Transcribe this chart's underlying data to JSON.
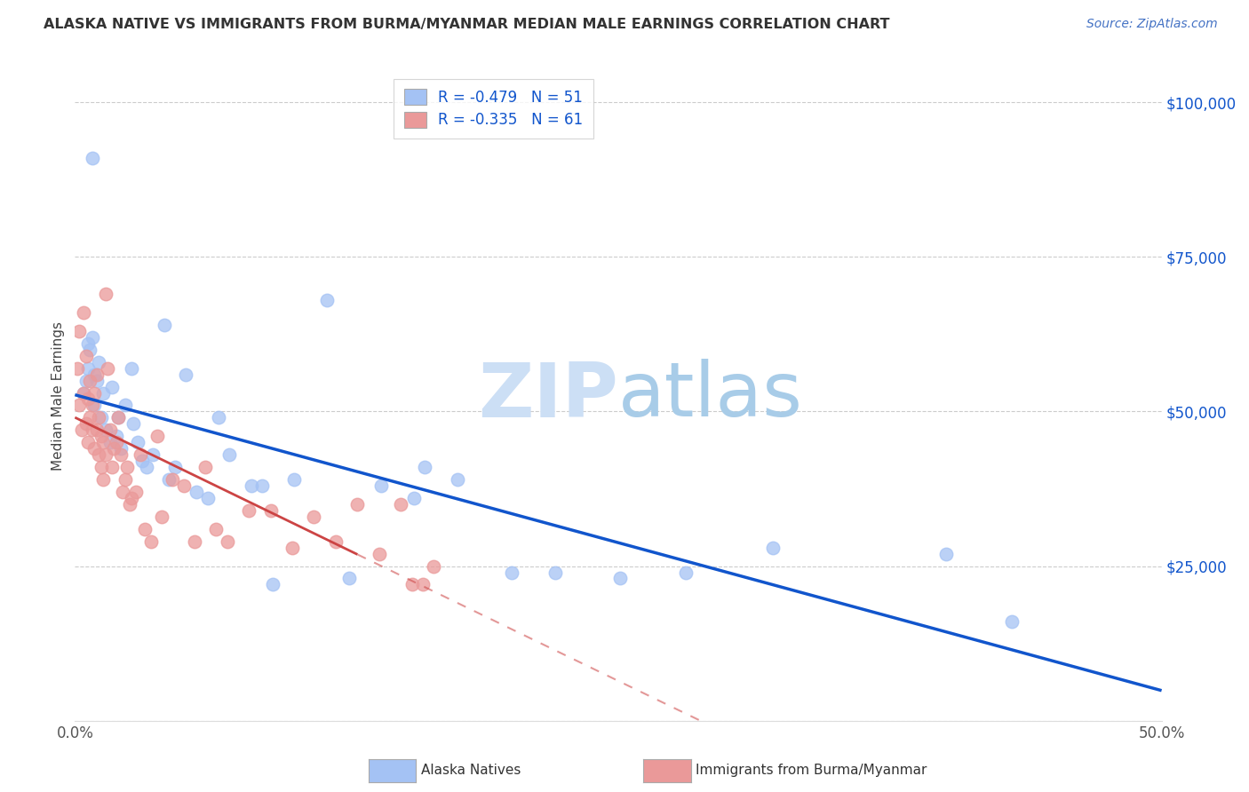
{
  "title": "ALASKA NATIVE VS IMMIGRANTS FROM BURMA/MYANMAR MEDIAN MALE EARNINGS CORRELATION CHART",
  "source": "Source: ZipAtlas.com",
  "ylabel": "Median Male Earnings",
  "xlim": [
    0,
    0.5
  ],
  "ylim": [
    0,
    105000
  ],
  "ytick_vals": [
    0,
    25000,
    50000,
    75000,
    100000
  ],
  "ytick_labels": [
    "",
    "$25,000",
    "$50,000",
    "$75,000",
    "$100,000"
  ],
  "xtick_vals": [
    0.0,
    0.1,
    0.2,
    0.3,
    0.4,
    0.5
  ],
  "xtick_labels": [
    "0.0%",
    "",
    "",
    "",
    "",
    "50.0%"
  ],
  "blue_scatter_color": "#a4c2f4",
  "pink_scatter_color": "#ea9999",
  "blue_line_color": "#1155cc",
  "pink_line_color": "#cc4444",
  "right_axis_color": "#1155cc",
  "watermark_color": "#d6e8f7",
  "blue_R": -0.479,
  "blue_N": 51,
  "pink_R": -0.335,
  "pink_N": 61,
  "legend_label_blue": "Alaska Natives",
  "legend_label_pink": "Immigrants from Burma/Myanmar",
  "alaska_x": [
    0.008,
    0.004,
    0.005,
    0.006,
    0.006,
    0.007,
    0.008,
    0.009,
    0.009,
    0.01,
    0.011,
    0.012,
    0.013,
    0.014,
    0.016,
    0.017,
    0.019,
    0.02,
    0.021,
    0.023,
    0.026,
    0.027,
    0.029,
    0.031,
    0.033,
    0.036,
    0.041,
    0.043,
    0.046,
    0.051,
    0.056,
    0.061,
    0.066,
    0.071,
    0.081,
    0.086,
    0.091,
    0.101,
    0.116,
    0.126,
    0.141,
    0.156,
    0.161,
    0.176,
    0.201,
    0.221,
    0.251,
    0.281,
    0.321,
    0.401,
    0.431
  ],
  "alaska_y": [
    91000,
    53000,
    55000,
    57000,
    61000,
    60000,
    62000,
    56000,
    51000,
    55000,
    58000,
    49000,
    53000,
    47000,
    45000,
    54000,
    46000,
    49000,
    44000,
    51000,
    57000,
    48000,
    45000,
    42000,
    41000,
    43000,
    64000,
    39000,
    41000,
    56000,
    37000,
    36000,
    49000,
    43000,
    38000,
    38000,
    22000,
    39000,
    68000,
    23000,
    38000,
    36000,
    41000,
    39000,
    24000,
    24000,
    23000,
    24000,
    28000,
    27000,
    16000
  ],
  "burma_x": [
    0.001,
    0.002,
    0.002,
    0.003,
    0.004,
    0.004,
    0.005,
    0.005,
    0.006,
    0.006,
    0.007,
    0.007,
    0.008,
    0.008,
    0.009,
    0.009,
    0.01,
    0.01,
    0.011,
    0.011,
    0.012,
    0.012,
    0.013,
    0.013,
    0.014,
    0.014,
    0.015,
    0.016,
    0.017,
    0.018,
    0.019,
    0.02,
    0.021,
    0.022,
    0.023,
    0.024,
    0.025,
    0.026,
    0.028,
    0.03,
    0.032,
    0.035,
    0.038,
    0.04,
    0.045,
    0.05,
    0.055,
    0.06,
    0.065,
    0.07,
    0.08,
    0.09,
    0.1,
    0.11,
    0.12,
    0.13,
    0.14,
    0.15,
    0.155,
    0.16,
    0.165
  ],
  "burma_y": [
    57000,
    63000,
    51000,
    47000,
    66000,
    53000,
    48000,
    59000,
    52000,
    45000,
    55000,
    49000,
    51000,
    47000,
    53000,
    44000,
    56000,
    47000,
    49000,
    43000,
    46000,
    41000,
    45000,
    39000,
    43000,
    69000,
    57000,
    47000,
    41000,
    44000,
    45000,
    49000,
    43000,
    37000,
    39000,
    41000,
    35000,
    36000,
    37000,
    43000,
    31000,
    29000,
    46000,
    33000,
    39000,
    38000,
    29000,
    41000,
    31000,
    29000,
    34000,
    34000,
    28000,
    33000,
    29000,
    35000,
    27000,
    35000,
    22000,
    22000,
    25000
  ]
}
